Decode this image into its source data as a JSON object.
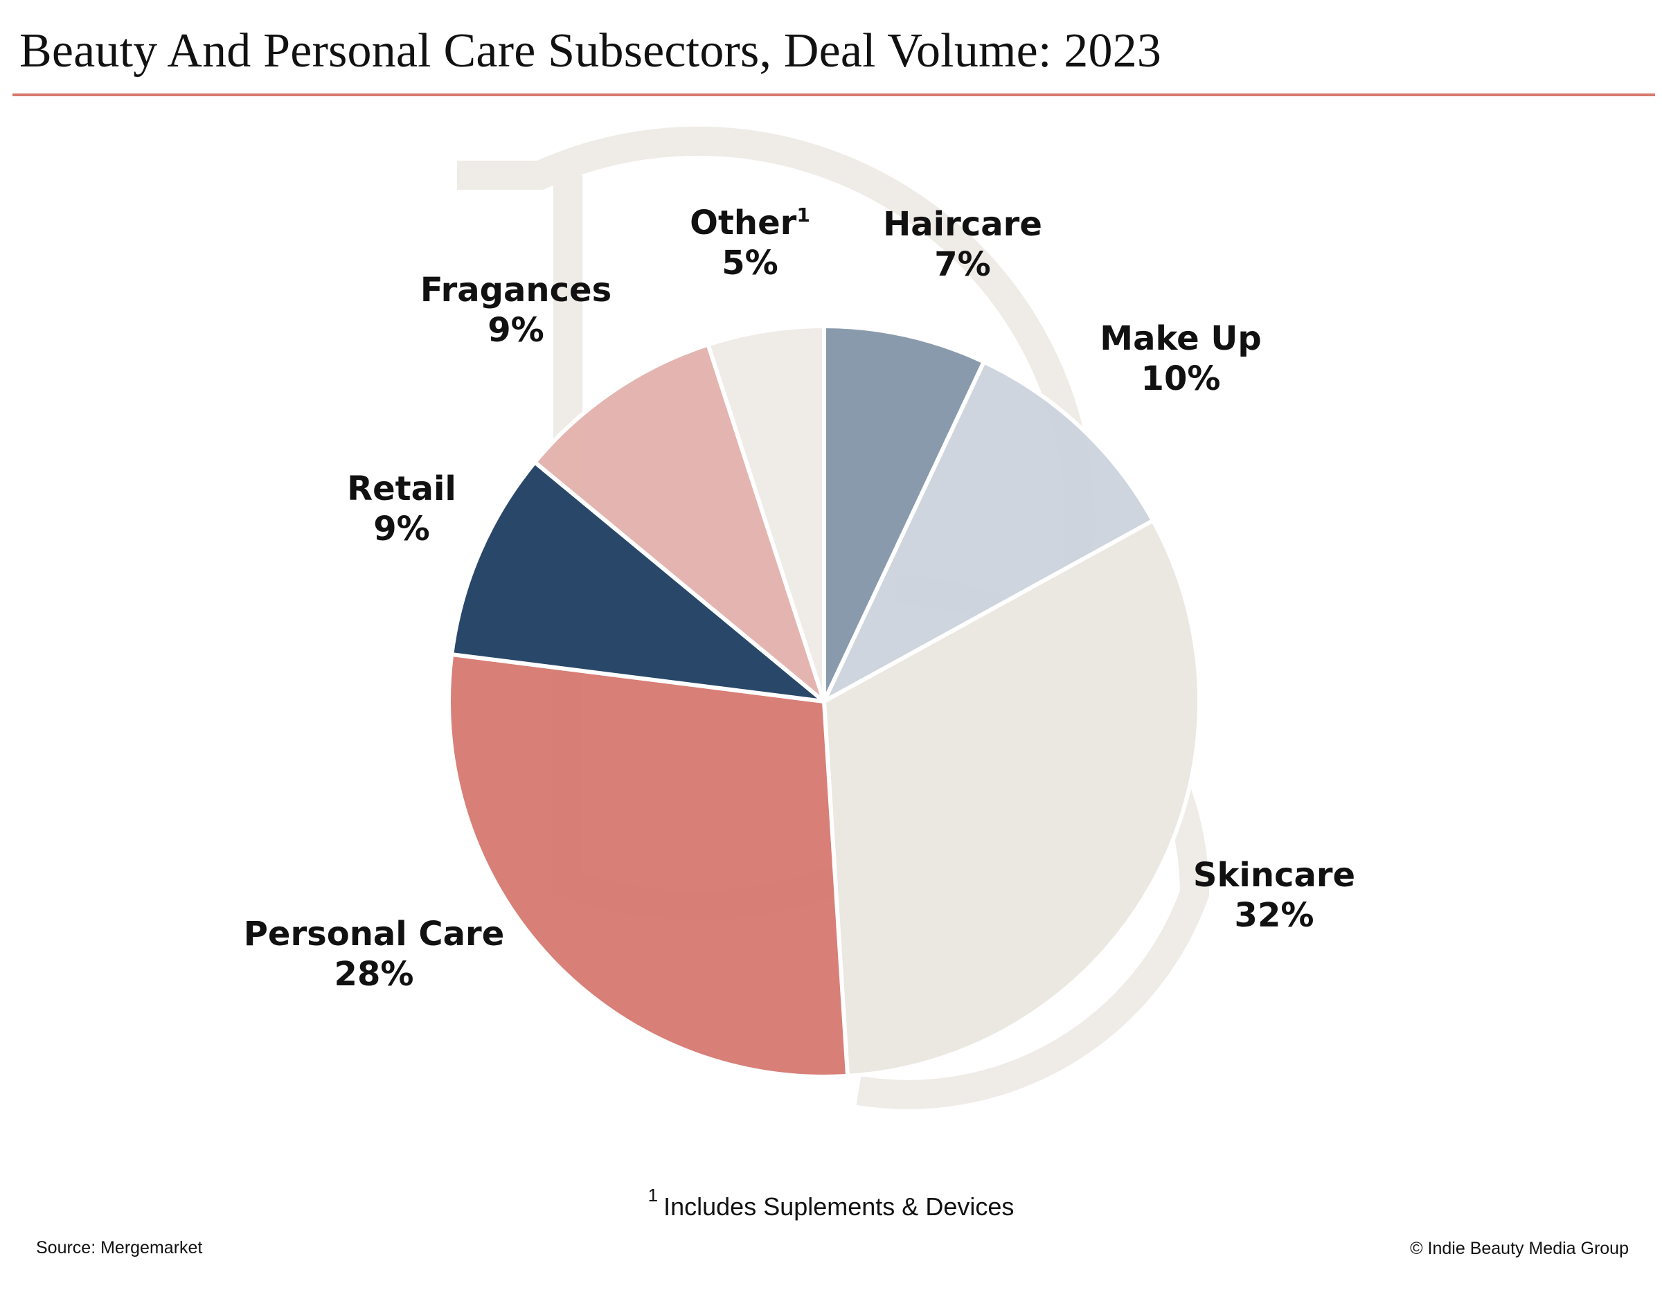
{
  "title": "Beauty And Personal Care Subsectors, Deal Volume: 2023",
  "colors": {
    "rule": "#d8786d",
    "watermark": "#efebe6"
  },
  "chart_data": {
    "type": "pie",
    "title": "Beauty And Personal Care Subsectors, Deal Volume: 2023",
    "start": "12 o'clock",
    "direction": "clockwise",
    "slices": [
      {
        "name": "Haircare",
        "value": 7,
        "value_label": "7%",
        "color": "#8697aa",
        "superscript": ""
      },
      {
        "name": "Make Up",
        "value": 10,
        "value_label": "10%",
        "color": "#cdd4dd",
        "superscript": ""
      },
      {
        "name": "Skincare",
        "value": 32,
        "value_label": "32%",
        "color": "#ebe7e1",
        "superscript": ""
      },
      {
        "name": "Personal Care",
        "value": 28,
        "value_label": "28%",
        "color": "#d77b73",
        "superscript": ""
      },
      {
        "name": "Retail",
        "value": 9,
        "value_label": "9%",
        "color": "#234365",
        "superscript": ""
      },
      {
        "name": "Fragances",
        "value": 9,
        "value_label": "9%",
        "color": "#e4b3ae",
        "superscript": ""
      },
      {
        "name": "Other",
        "value": 5,
        "value_label": "5%",
        "color": "#efebe7",
        "superscript": "1"
      }
    ]
  },
  "footnote": {
    "marker": "1",
    "text": "Includes Suplements & Devices"
  },
  "source": "Source: Mergemarket",
  "copyright": "© Indie Beauty Media Group"
}
